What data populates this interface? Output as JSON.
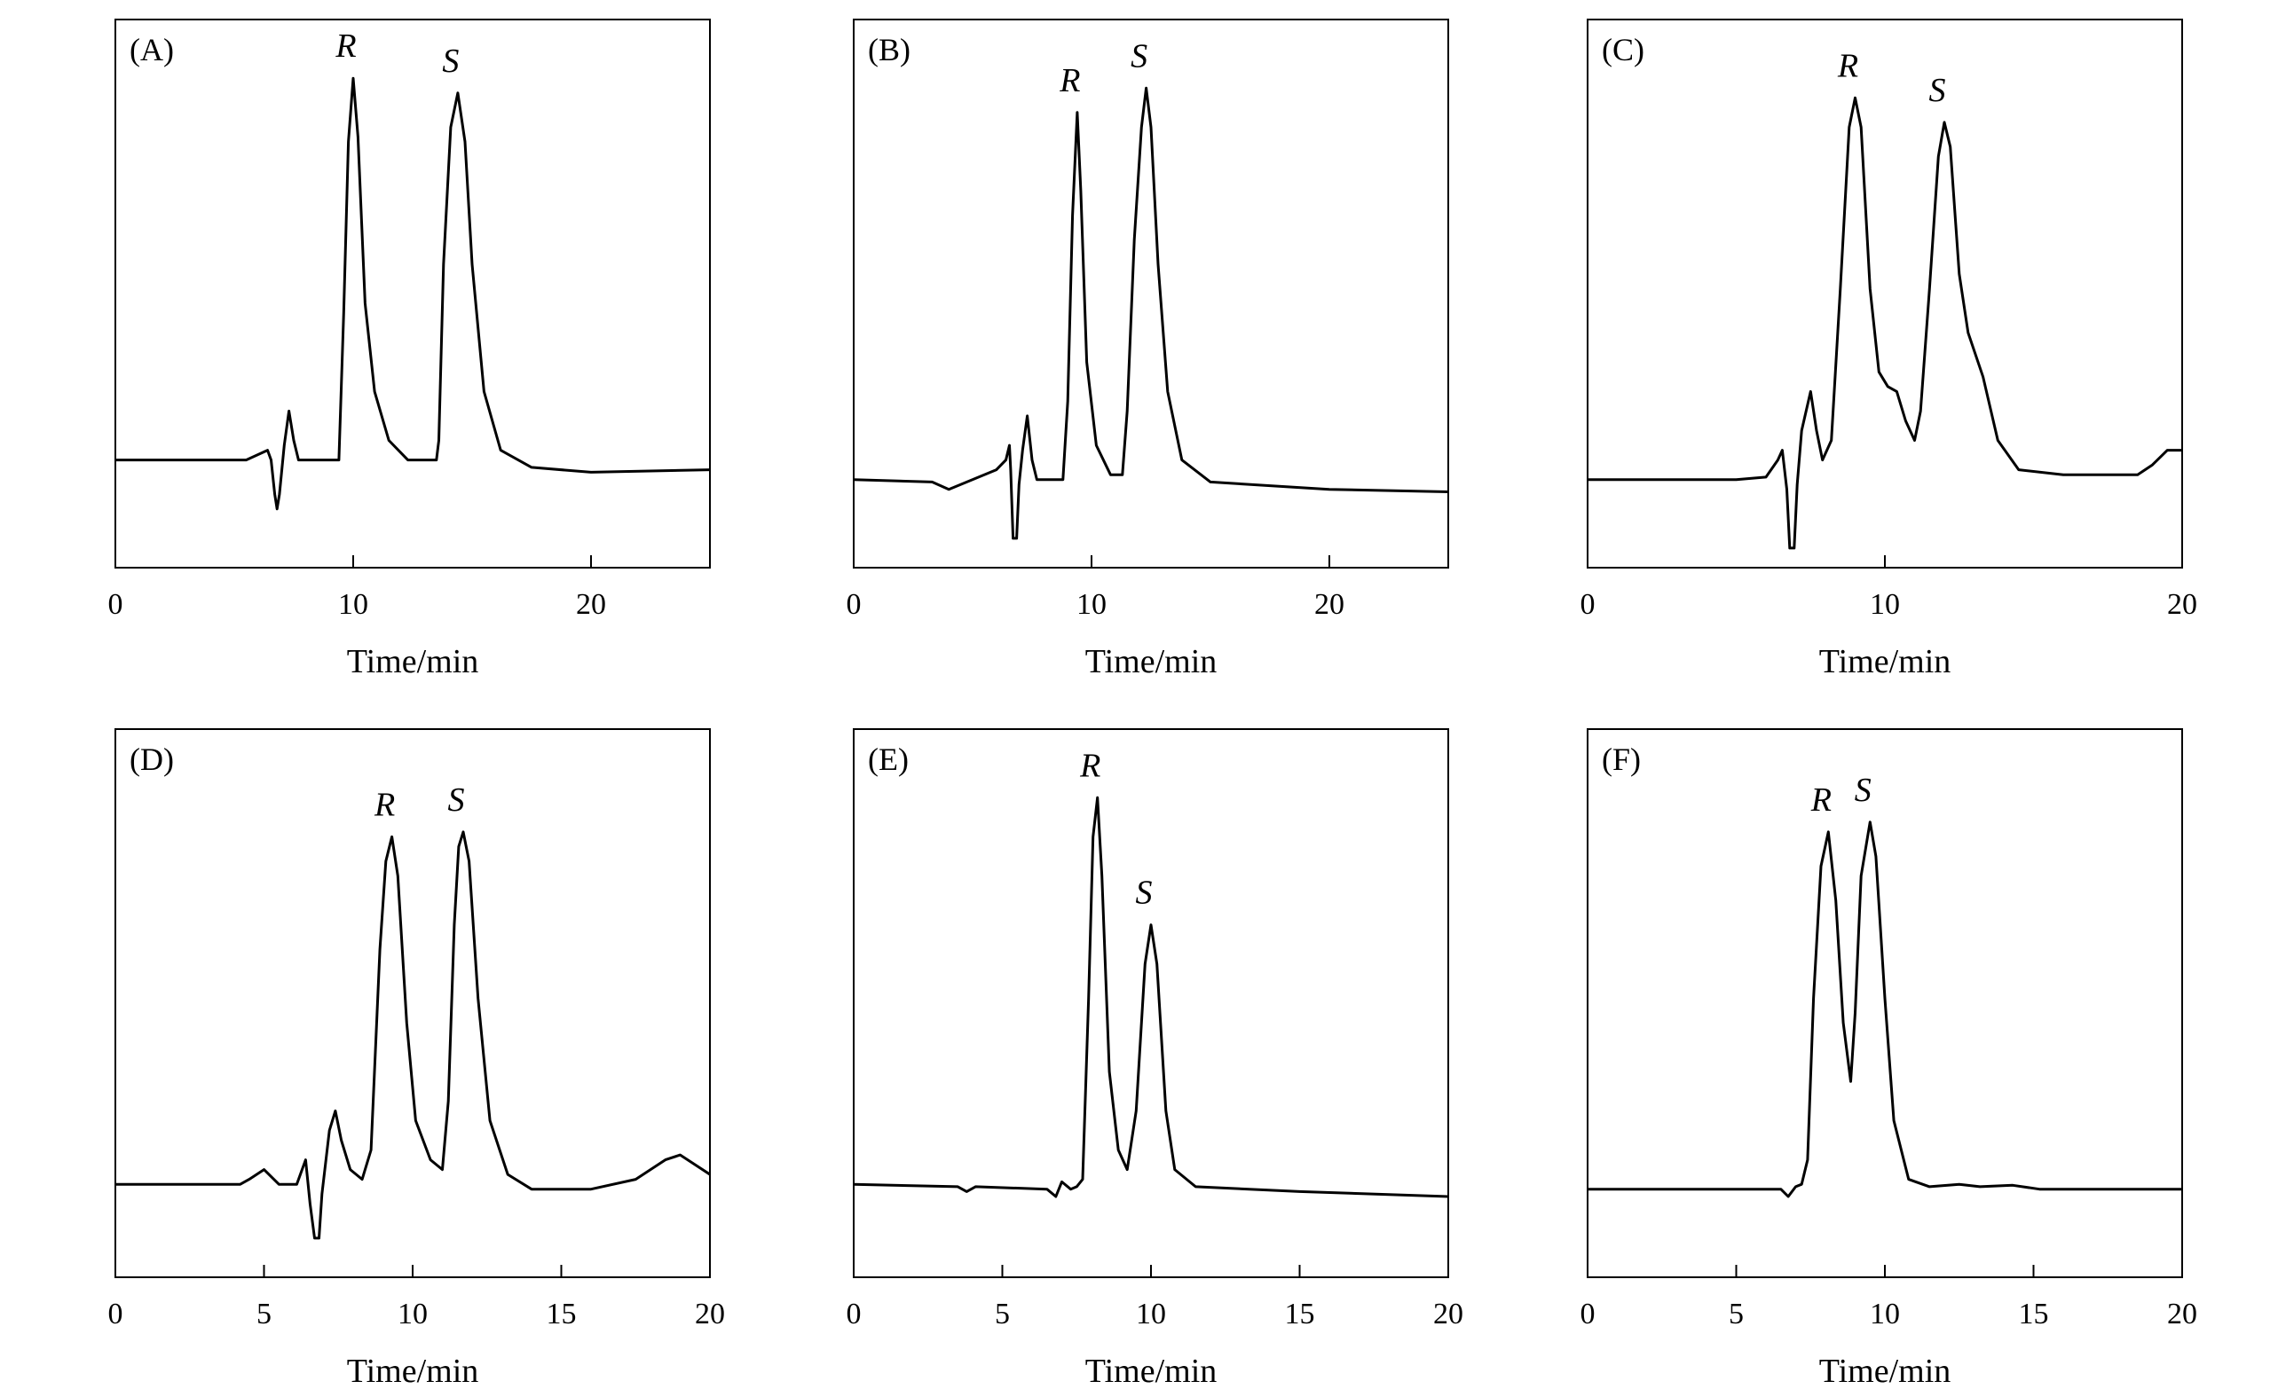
{
  "chart_data": [
    {
      "type": "line",
      "panel_label": "(A)",
      "xlabel": "Time/min",
      "ylabel": "",
      "xlim": [
        0,
        25
      ],
      "ylim": [
        -0.12,
        1.0
      ],
      "x_ticks": [
        0,
        10,
        20
      ],
      "grid": false,
      "peaks": [
        {
          "label": "R",
          "x": 10.0,
          "y": 0.88
        },
        {
          "label": "S",
          "x": 14.4,
          "y": 0.85
        }
      ],
      "series": [
        {
          "values": [
            [
              0,
              0.1
            ],
            [
              4,
              0.1
            ],
            [
              5.5,
              0.1
            ],
            [
              6.4,
              0.12
            ],
            [
              6.55,
              0.1
            ],
            [
              6.7,
              0.03
            ],
            [
              6.8,
              0.0
            ],
            [
              6.9,
              0.03
            ],
            [
              7.1,
              0.13
            ],
            [
              7.3,
              0.2
            ],
            [
              7.5,
              0.14
            ],
            [
              7.7,
              0.1
            ],
            [
              9.0,
              0.1
            ],
            [
              9.4,
              0.1
            ],
            [
              9.6,
              0.4
            ],
            [
              9.8,
              0.75
            ],
            [
              10.0,
              0.88
            ],
            [
              10.2,
              0.76
            ],
            [
              10.5,
              0.42
            ],
            [
              10.9,
              0.24
            ],
            [
              11.5,
              0.14
            ],
            [
              12.3,
              0.1
            ],
            [
              13.5,
              0.1
            ],
            [
              13.6,
              0.14
            ],
            [
              13.8,
              0.5
            ],
            [
              14.1,
              0.78
            ],
            [
              14.4,
              0.85
            ],
            [
              14.7,
              0.75
            ],
            [
              15.0,
              0.5
            ],
            [
              15.5,
              0.24
            ],
            [
              16.2,
              0.12
            ],
            [
              17.5,
              0.085
            ],
            [
              20,
              0.075
            ],
            [
              25,
              0.08
            ]
          ]
        }
      ]
    },
    {
      "type": "line",
      "panel_label": "(B)",
      "xlabel": "Time/min",
      "ylabel": "",
      "xlim": [
        0,
        25
      ],
      "ylim": [
        -0.12,
        1.0
      ],
      "x_ticks": [
        0,
        10,
        20
      ],
      "grid": false,
      "peaks": [
        {
          "label": "R",
          "x": 9.4,
          "y": 0.81
        },
        {
          "label": "S",
          "x": 12.3,
          "y": 0.86
        }
      ],
      "series": [
        {
          "values": [
            [
              0,
              0.06
            ],
            [
              3.3,
              0.055
            ],
            [
              4.0,
              0.04
            ],
            [
              6.0,
              0.08
            ],
            [
              6.4,
              0.1
            ],
            [
              6.55,
              0.13
            ],
            [
              6.6,
              0.08
            ],
            [
              6.7,
              -0.06
            ],
            [
              6.85,
              -0.06
            ],
            [
              6.95,
              0.05
            ],
            [
              7.1,
              0.12
            ],
            [
              7.3,
              0.19
            ],
            [
              7.5,
              0.1
            ],
            [
              7.7,
              0.06
            ],
            [
              8.8,
              0.06
            ],
            [
              9.0,
              0.22
            ],
            [
              9.2,
              0.6
            ],
            [
              9.4,
              0.81
            ],
            [
              9.55,
              0.65
            ],
            [
              9.8,
              0.3
            ],
            [
              10.2,
              0.13
            ],
            [
              10.8,
              0.07
            ],
            [
              11.3,
              0.07
            ],
            [
              11.5,
              0.2
            ],
            [
              11.8,
              0.55
            ],
            [
              12.1,
              0.78
            ],
            [
              12.3,
              0.86
            ],
            [
              12.5,
              0.78
            ],
            [
              12.8,
              0.5
            ],
            [
              13.2,
              0.24
            ],
            [
              13.8,
              0.1
            ],
            [
              15.0,
              0.055
            ],
            [
              20,
              0.04
            ],
            [
              25,
              0.035
            ]
          ]
        }
      ]
    },
    {
      "type": "line",
      "panel_label": "(C)",
      "xlabel": "Time/min",
      "ylabel": "",
      "xlim": [
        0,
        20
      ],
      "ylim": [
        -0.12,
        1.0
      ],
      "x_ticks": [
        0,
        10,
        20
      ],
      "grid": false,
      "peaks": [
        {
          "label": "R",
          "x": 9.0,
          "y": 0.84
        },
        {
          "label": "S",
          "x": 12.0,
          "y": 0.79
        }
      ],
      "series": [
        {
          "values": [
            [
              0,
              0.06
            ],
            [
              5,
              0.06
            ],
            [
              6.0,
              0.065
            ],
            [
              6.4,
              0.1
            ],
            [
              6.55,
              0.12
            ],
            [
              6.7,
              0.04
            ],
            [
              6.8,
              -0.08
            ],
            [
              6.95,
              -0.08
            ],
            [
              7.05,
              0.05
            ],
            [
              7.2,
              0.16
            ],
            [
              7.5,
              0.24
            ],
            [
              7.7,
              0.16
            ],
            [
              7.9,
              0.1
            ],
            [
              8.2,
              0.14
            ],
            [
              8.5,
              0.45
            ],
            [
              8.8,
              0.78
            ],
            [
              9.0,
              0.84
            ],
            [
              9.2,
              0.78
            ],
            [
              9.5,
              0.45
            ],
            [
              9.8,
              0.28
            ],
            [
              10.1,
              0.25
            ],
            [
              10.4,
              0.24
            ],
            [
              10.7,
              0.18
            ],
            [
              11.0,
              0.14
            ],
            [
              11.2,
              0.2
            ],
            [
              11.5,
              0.45
            ],
            [
              11.8,
              0.72
            ],
            [
              12.0,
              0.79
            ],
            [
              12.2,
              0.74
            ],
            [
              12.5,
              0.48
            ],
            [
              12.8,
              0.36
            ],
            [
              13.3,
              0.27
            ],
            [
              13.8,
              0.14
            ],
            [
              14.5,
              0.08
            ],
            [
              16,
              0.07
            ],
            [
              18.5,
              0.07
            ],
            [
              19.0,
              0.09
            ],
            [
              19.5,
              0.12
            ],
            [
              20,
              0.12
            ]
          ]
        }
      ]
    },
    {
      "type": "line",
      "panel_label": "(D)",
      "xlabel": "Time/min",
      "ylabel": "",
      "xlim": [
        0,
        20
      ],
      "ylim": [
        -0.12,
        1.0
      ],
      "x_ticks": [
        0,
        5,
        10,
        15,
        20
      ],
      "grid": false,
      "peaks": [
        {
          "label": "R",
          "x": 9.3,
          "y": 0.78
        },
        {
          "label": "S",
          "x": 11.7,
          "y": 0.79
        }
      ],
      "series": [
        {
          "values": [
            [
              0,
              0.07
            ],
            [
              4.2,
              0.07
            ],
            [
              4.5,
              0.08
            ],
            [
              5.0,
              0.1
            ],
            [
              5.5,
              0.07
            ],
            [
              6.1,
              0.07
            ],
            [
              6.4,
              0.12
            ],
            [
              6.55,
              0.03
            ],
            [
              6.7,
              -0.04
            ],
            [
              6.85,
              -0.04
            ],
            [
              6.95,
              0.05
            ],
            [
              7.2,
              0.18
            ],
            [
              7.4,
              0.22
            ],
            [
              7.6,
              0.16
            ],
            [
              7.9,
              0.1
            ],
            [
              8.3,
              0.08
            ],
            [
              8.6,
              0.14
            ],
            [
              8.9,
              0.55
            ],
            [
              9.1,
              0.73
            ],
            [
              9.3,
              0.78
            ],
            [
              9.5,
              0.7
            ],
            [
              9.8,
              0.4
            ],
            [
              10.1,
              0.2
            ],
            [
              10.6,
              0.12
            ],
            [
              11.0,
              0.1
            ],
            [
              11.2,
              0.24
            ],
            [
              11.4,
              0.6
            ],
            [
              11.55,
              0.76
            ],
            [
              11.7,
              0.79
            ],
            [
              11.9,
              0.73
            ],
            [
              12.2,
              0.45
            ],
            [
              12.6,
              0.2
            ],
            [
              13.2,
              0.09
            ],
            [
              14.0,
              0.06
            ],
            [
              16,
              0.06
            ],
            [
              17.5,
              0.08
            ],
            [
              18.5,
              0.12
            ],
            [
              19.0,
              0.13
            ],
            [
              19.5,
              0.11
            ],
            [
              20,
              0.09
            ]
          ]
        }
      ]
    },
    {
      "type": "line",
      "panel_label": "(E)",
      "xlabel": "Time/min",
      "ylabel": "",
      "xlim": [
        0,
        20
      ],
      "ylim": [
        -0.12,
        1.0
      ],
      "x_ticks": [
        0,
        5,
        10,
        15,
        20
      ],
      "grid": false,
      "peaks": [
        {
          "label": "R",
          "x": 8.2,
          "y": 0.86
        },
        {
          "label": "S",
          "x": 10.0,
          "y": 0.6
        }
      ],
      "series": [
        {
          "values": [
            [
              0,
              0.07
            ],
            [
              3.5,
              0.065
            ],
            [
              3.8,
              0.055
            ],
            [
              4.1,
              0.065
            ],
            [
              6.5,
              0.06
            ],
            [
              6.8,
              0.045
            ],
            [
              7.0,
              0.075
            ],
            [
              7.3,
              0.06
            ],
            [
              7.5,
              0.065
            ],
            [
              7.7,
              0.08
            ],
            [
              7.9,
              0.45
            ],
            [
              8.05,
              0.78
            ],
            [
              8.2,
              0.86
            ],
            [
              8.35,
              0.7
            ],
            [
              8.6,
              0.3
            ],
            [
              8.9,
              0.14
            ],
            [
              9.2,
              0.1
            ],
            [
              9.5,
              0.22
            ],
            [
              9.8,
              0.52
            ],
            [
              10.0,
              0.6
            ],
            [
              10.2,
              0.52
            ],
            [
              10.5,
              0.22
            ],
            [
              10.8,
              0.1
            ],
            [
              11.5,
              0.065
            ],
            [
              15,
              0.055
            ],
            [
              20,
              0.045
            ]
          ]
        }
      ]
    },
    {
      "type": "line",
      "panel_label": "(F)",
      "xlabel": "Time/min",
      "ylabel": "",
      "xlim": [
        0,
        20
      ],
      "ylim": [
        -0.12,
        1.0
      ],
      "x_ticks": [
        0,
        5,
        10,
        15,
        20
      ],
      "grid": false,
      "peaks": [
        {
          "label": "R",
          "x": 8.1,
          "y": 0.79
        },
        {
          "label": "S",
          "x": 9.5,
          "y": 0.81
        }
      ],
      "series": [
        {
          "values": [
            [
              0,
              0.06
            ],
            [
              6.5,
              0.06
            ],
            [
              6.75,
              0.045
            ],
            [
              7.0,
              0.065
            ],
            [
              7.2,
              0.07
            ],
            [
              7.4,
              0.12
            ],
            [
              7.6,
              0.45
            ],
            [
              7.85,
              0.72
            ],
            [
              8.1,
              0.79
            ],
            [
              8.35,
              0.65
            ],
            [
              8.6,
              0.4
            ],
            [
              8.85,
              0.28
            ],
            [
              9.0,
              0.42
            ],
            [
              9.2,
              0.7
            ],
            [
              9.5,
              0.81
            ],
            [
              9.7,
              0.74
            ],
            [
              10.0,
              0.45
            ],
            [
              10.3,
              0.2
            ],
            [
              10.8,
              0.08
            ],
            [
              11.5,
              0.065
            ],
            [
              12.5,
              0.07
            ],
            [
              13.2,
              0.065
            ],
            [
              14.3,
              0.068
            ],
            [
              15.2,
              0.06
            ],
            [
              20,
              0.06
            ]
          ]
        }
      ]
    }
  ]
}
